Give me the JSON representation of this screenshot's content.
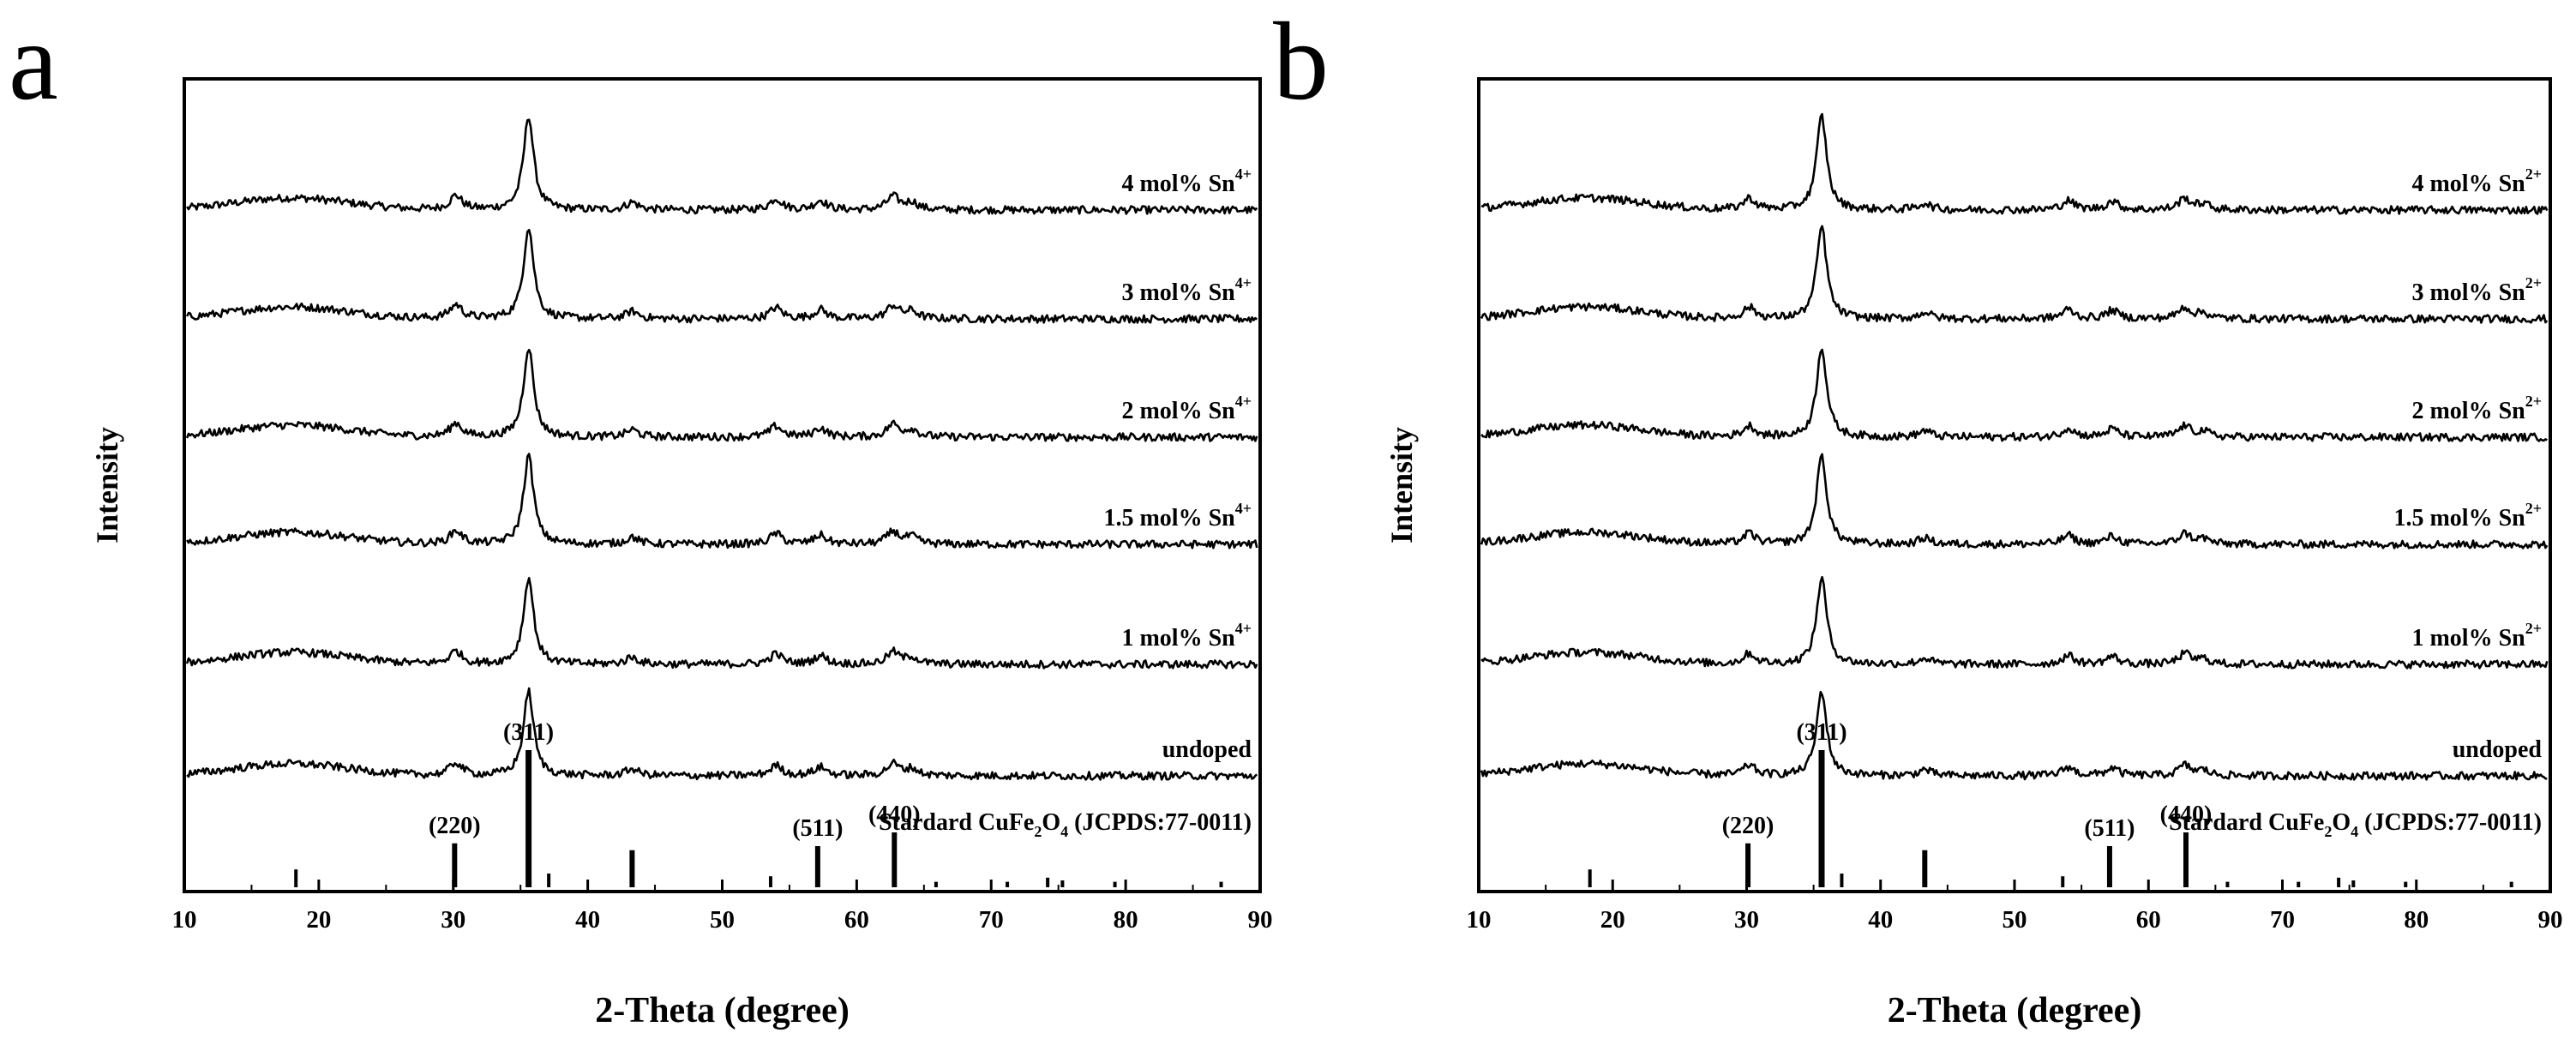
{
  "chart_data": [
    {
      "type": "line",
      "panel_label": "a",
      "xlabel": "2-Theta (degree)",
      "ylabel": "Intensity",
      "xlim": [
        10,
        90
      ],
      "xticks": [
        10,
        20,
        30,
        40,
        50,
        60,
        70,
        80,
        90
      ],
      "dopant": "Sn",
      "dopant_charge": "4+",
      "series": [
        {
          "name": "4 mol% Sn4+",
          "label_main": "4 mol% Sn",
          "label_sup": "4+"
        },
        {
          "name": "3 mol% Sn4+",
          "label_main": "3 mol% Sn",
          "label_sup": "4+"
        },
        {
          "name": "2 mol% Sn4+",
          "label_main": "2 mol% Sn",
          "label_sup": "4+"
        },
        {
          "name": "1.5 mol% Sn4+",
          "label_main": "1.5 mol% Sn",
          "label_sup": "4+"
        },
        {
          "name": "1 mol% Sn4+",
          "label_main": "1 mol% Sn",
          "label_sup": "4+"
        },
        {
          "name": "undoped",
          "label_main": "undoped",
          "label_sup": ""
        }
      ],
      "peaks": [
        {
          "two_theta": 30.2,
          "height": 0.15
        },
        {
          "two_theta": 35.6,
          "height": 1.0
        },
        {
          "two_theta": 43.3,
          "height": 0.08
        },
        {
          "two_theta": 54.0,
          "height": 0.12
        },
        {
          "two_theta": 57.3,
          "height": 0.1
        },
        {
          "two_theta": 62.7,
          "height": 0.14
        },
        {
          "two_theta": 64.1,
          "height": 0.08
        }
      ],
      "reference": {
        "name": "Stardard CuFe2O4 (JCPDS:77-0011)",
        "label_parts": [
          "Stardard CuFe",
          "2",
          "O",
          "4",
          " (JCPDS:77-0011)"
        ],
        "lines": [
          {
            "two_theta": 18.3,
            "intensity": 0.13
          },
          {
            "two_theta": 30.1,
            "intensity": 0.32
          },
          {
            "two_theta": 35.6,
            "intensity": 1.0
          },
          {
            "two_theta": 37.1,
            "intensity": 0.1
          },
          {
            "two_theta": 43.3,
            "intensity": 0.27
          },
          {
            "two_theta": 53.6,
            "intensity": 0.08
          },
          {
            "two_theta": 57.1,
            "intensity": 0.3
          },
          {
            "two_theta": 62.8,
            "intensity": 0.4
          },
          {
            "two_theta": 65.9,
            "intensity": 0.04
          },
          {
            "two_theta": 71.2,
            "intensity": 0.04
          },
          {
            "two_theta": 74.2,
            "intensity": 0.07
          },
          {
            "two_theta": 75.3,
            "intensity": 0.05
          },
          {
            "two_theta": 79.2,
            "intensity": 0.04
          },
          {
            "two_theta": 87.1,
            "intensity": 0.04
          }
        ],
        "hkl": [
          {
            "label": "(220)",
            "two_theta": 30.1
          },
          {
            "label": "(311)",
            "two_theta": 35.6
          },
          {
            "label": "(511)",
            "two_theta": 57.1
          },
          {
            "label": "(440)",
            "two_theta": 62.8
          }
        ]
      }
    },
    {
      "type": "line",
      "panel_label": "b",
      "xlabel": "2-Theta (degree)",
      "ylabel": "Intensity",
      "xlim": [
        10,
        90
      ],
      "xticks": [
        10,
        20,
        30,
        40,
        50,
        60,
        70,
        80,
        90
      ],
      "dopant": "Sn",
      "dopant_charge": "2+",
      "series": [
        {
          "name": "4 mol% Sn2+",
          "label_main": "4 mol% Sn",
          "label_sup": "2+"
        },
        {
          "name": "3 mol% Sn2+",
          "label_main": "3 mol% Sn",
          "label_sup": "2+"
        },
        {
          "name": "2 mol% Sn2+",
          "label_main": "2 mol% Sn",
          "label_sup": "2+"
        },
        {
          "name": "1.5 mol% Sn2+",
          "label_main": "1.5 mol% Sn",
          "label_sup": "2+"
        },
        {
          "name": "1 mol% Sn2+",
          "label_main": "1 mol% Sn",
          "label_sup": "2+"
        },
        {
          "name": "undoped",
          "label_main": "undoped",
          "label_sup": ""
        }
      ],
      "peaks": [
        {
          "two_theta": 30.2,
          "height": 0.12
        },
        {
          "two_theta": 35.6,
          "height": 1.0
        },
        {
          "two_theta": 43.3,
          "height": 0.07
        },
        {
          "two_theta": 54.0,
          "height": 0.1
        },
        {
          "two_theta": 57.3,
          "height": 0.09
        },
        {
          "two_theta": 62.7,
          "height": 0.12
        },
        {
          "two_theta": 64.1,
          "height": 0.06
        }
      ],
      "reference": {
        "name": "Stardard CuFe2O4 (JCPDS:77-0011)",
        "label_parts": [
          "Stardard CuFe",
          "2",
          "O",
          "4",
          " (JCPDS:77-0011)"
        ],
        "lines": [
          {
            "two_theta": 18.3,
            "intensity": 0.13
          },
          {
            "two_theta": 30.1,
            "intensity": 0.32
          },
          {
            "two_theta": 35.6,
            "intensity": 1.0
          },
          {
            "two_theta": 37.1,
            "intensity": 0.1
          },
          {
            "two_theta": 43.3,
            "intensity": 0.27
          },
          {
            "two_theta": 53.6,
            "intensity": 0.08
          },
          {
            "two_theta": 57.1,
            "intensity": 0.3
          },
          {
            "two_theta": 62.8,
            "intensity": 0.4
          },
          {
            "two_theta": 65.9,
            "intensity": 0.04
          },
          {
            "two_theta": 71.2,
            "intensity": 0.04
          },
          {
            "two_theta": 74.2,
            "intensity": 0.07
          },
          {
            "two_theta": 75.3,
            "intensity": 0.05
          },
          {
            "two_theta": 79.2,
            "intensity": 0.04
          },
          {
            "two_theta": 87.1,
            "intensity": 0.04
          }
        ],
        "hkl": [
          {
            "label": "(220)",
            "two_theta": 30.1
          },
          {
            "label": "(311)",
            "two_theta": 35.6
          },
          {
            "label": "(511)",
            "two_theta": 57.1
          },
          {
            "label": "(440)",
            "two_theta": 62.8
          }
        ]
      }
    }
  ]
}
